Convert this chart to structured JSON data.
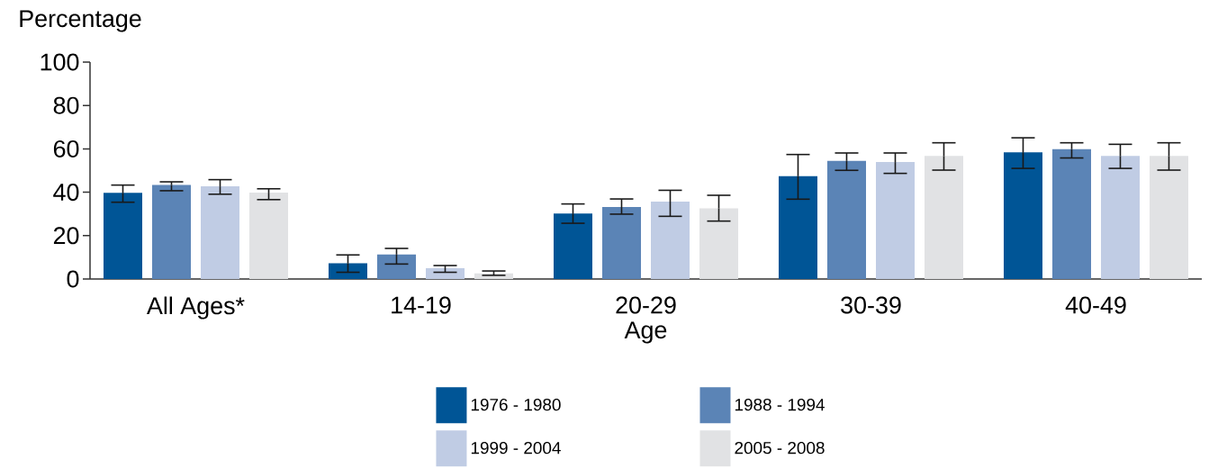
{
  "chart_data": {
    "type": "bar",
    "xlabel": "Age",
    "ylabel": "Percentage",
    "categories": [
      "All Ages*",
      "14-19",
      "20-29",
      "30-39",
      "40-49"
    ],
    "series": [
      {
        "name": "1976 - 1980",
        "color": "#005596",
        "values": [
          39.7,
          7.3,
          30.2,
          47.4,
          58.4
        ],
        "errors": [
          [
            35.4,
            43.3
          ],
          [
            3.1,
            11.1
          ],
          [
            25.7,
            34.6
          ],
          [
            36.8,
            57.4
          ],
          [
            51.0,
            65.1
          ]
        ]
      },
      {
        "name": "1988 - 1994",
        "color": "#5b84b6",
        "values": [
          43.4,
          11.3,
          33.2,
          54.5,
          59.9
        ],
        "errors": [
          [
            40.7,
            44.8
          ],
          [
            6.9,
            14.1
          ],
          [
            29.9,
            36.9
          ],
          [
            50.1,
            58.1
          ],
          [
            55.8,
            62.8
          ]
        ]
      },
      {
        "name": "1999 - 2004",
        "color": "#c0cce4",
        "values": [
          42.7,
          5.0,
          35.7,
          53.9,
          56.7
        ],
        "errors": [
          [
            39.1,
            45.8
          ],
          [
            3.1,
            6.2
          ],
          [
            28.9,
            40.9
          ],
          [
            48.7,
            58.1
          ],
          [
            51.0,
            62.1
          ]
        ]
      },
      {
        "name": "2005 - 2008",
        "color": "#e1e2e4",
        "values": [
          39.8,
          2.6,
          32.6,
          56.7,
          56.7
        ],
        "errors": [
          [
            36.6,
            41.6
          ],
          [
            1.7,
            3.7
          ],
          [
            26.7,
            38.6
          ],
          [
            50.2,
            62.8
          ],
          [
            50.2,
            62.8
          ]
        ]
      }
    ],
    "ylim": [
      0,
      100
    ],
    "yticks": [
      0,
      20,
      40,
      60,
      80,
      100
    ],
    "grid": false,
    "legend": "bottom"
  }
}
